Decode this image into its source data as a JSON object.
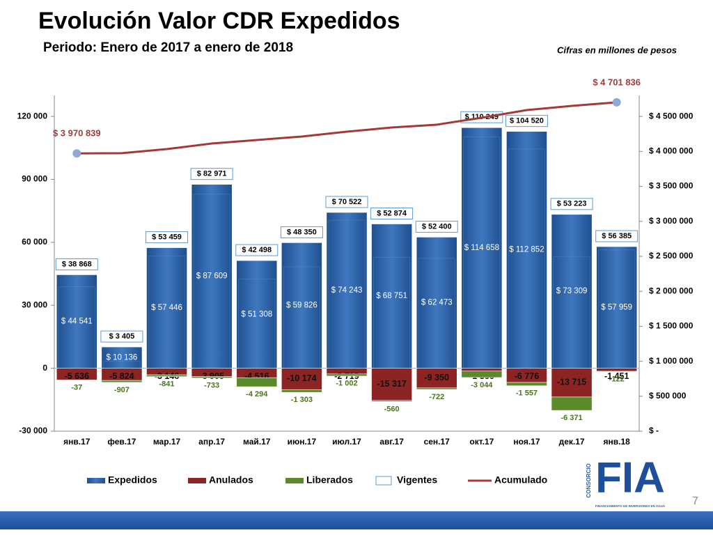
{
  "title": "Evolución Valor CDR Expedidos",
  "subtitle": "Periodo:  Enero de 2017 a enero de 2018",
  "note": "Cifras en millones de pesos",
  "page_number": "7",
  "logo": {
    "brand": "CONSORCIO",
    "name": "FIA",
    "tagline": "FINANCIAMIENTO DE INVERSIONES EN AGUA"
  },
  "chart_data": {
    "type": "bar",
    "stacked": true,
    "legend": "bottom",
    "categories": [
      "янв.17",
      "фев.17",
      "мар.17",
      "апр.17",
      "май.17",
      "июн.17",
      "июл.17",
      "авг.17",
      "сен.17",
      "окт.17",
      "ноя.17",
      "дек.17",
      "янв.18"
    ],
    "series": [
      {
        "name": "Expedidos",
        "type": "bar",
        "color": "#2f63a6",
        "values": [
          44541,
          10136,
          57446,
          87609,
          51308,
          59826,
          74243,
          68751,
          62473,
          114658,
          112852,
          73309,
          57959
        ],
        "value_labels": [
          "$ 44 541",
          "$ 10 136",
          "$ 57 446",
          "$ 87 609",
          "$ 51 308",
          "$ 59 826",
          "$ 74 243",
          "$ 68 751",
          "$ 62 473",
          "$ 114 658",
          "$ 112 852",
          "$ 73 309",
          "$ 57 959"
        ]
      },
      {
        "name": "Anulados",
        "type": "bar",
        "color": "#8c2424",
        "values": [
          -5636,
          -5824,
          -3146,
          -3905,
          -4516,
          -10174,
          -2719,
          -15317,
          -9350,
          -1366,
          -6776,
          -13715,
          -1451
        ],
        "value_labels": [
          "-5 636",
          "-5 824",
          "-3 146",
          "-3 905",
          "-4 516",
          "-10 174",
          "-2 719",
          "-15 317",
          "-9 350",
          "-1 366",
          "-6 776",
          "-13 715",
          "-1 451"
        ]
      },
      {
        "name": "Liberados",
        "type": "bar",
        "color": "#5b8a2a",
        "values": [
          -37,
          -907,
          -841,
          -733,
          -4294,
          -1303,
          -1002,
          -560,
          -722,
          -3044,
          -1557,
          -6371,
          -122
        ],
        "value_labels": [
          "-37",
          "-907",
          "-841",
          "-733",
          "-4 294",
          "-1 303",
          "-1 002",
          "-560",
          "-722",
          "-3 044",
          "-1 557",
          "-6 371",
          "-122"
        ]
      },
      {
        "name": "Vigentes",
        "type": "outline",
        "color": "#5b9bd5",
        "values": [
          38868,
          3405,
          53459,
          82971,
          42498,
          48350,
          70522,
          52874,
          52400,
          110249,
          104520,
          53223,
          56385
        ],
        "value_labels": [
          "$ 38 868",
          "$ 3 405",
          "$ 53 459",
          "$ 82 971",
          "$ 42 498",
          "$ 48 350",
          "$ 70 522",
          "$ 52 874",
          "$ 52 400",
          "$ 110 249",
          "$ 104 520",
          "$ 53 223",
          "$ 56 385"
        ]
      },
      {
        "name": "Acumulado",
        "type": "line",
        "axis": "y2",
        "color": "#a33a3a",
        "values": [
          3970839,
          3975000,
          4033000,
          4113000,
          4163000,
          4212000,
          4282000,
          4342000,
          4382000,
          4481000,
          4591000,
          4651000,
          4701836
        ],
        "value_labels": [
          "$ 3 970 839",
          null,
          null,
          null,
          null,
          null,
          null,
          null,
          null,
          null,
          null,
          null,
          "$ 4 701 836"
        ]
      }
    ],
    "ylim": [
      -30000,
      130000
    ],
    "yticks": [
      {
        "value": -30000,
        "label": "-30 000"
      },
      0,
      {
        "value": 30000,
        "label": "30 000"
      },
      {
        "value": 60000,
        "label": "60 000"
      },
      {
        "value": 90000,
        "label": "90 000"
      },
      {
        "value": 120000,
        "label": "120 000"
      }
    ],
    "y2lim": [
      0,
      4800000
    ],
    "y2ticks": [
      {
        "value": 0,
        "label": "$ -"
      },
      {
        "value": 500000,
        "label": "$ 500 000"
      },
      {
        "value": 1000000,
        "label": "$ 1 000 000"
      },
      {
        "value": 1500000,
        "label": "$ 1 500 000"
      },
      {
        "value": 2000000,
        "label": "$ 2 000 000"
      },
      {
        "value": 2500000,
        "label": "$ 2 500 000"
      },
      {
        "value": 3000000,
        "label": "$ 3 000 000"
      },
      {
        "value": 3500000,
        "label": "$ 3 500 000"
      },
      {
        "value": 4000000,
        "label": "$ 4 000 000"
      },
      {
        "value": 4500000,
        "label": "$ 4 500 000"
      }
    ]
  }
}
